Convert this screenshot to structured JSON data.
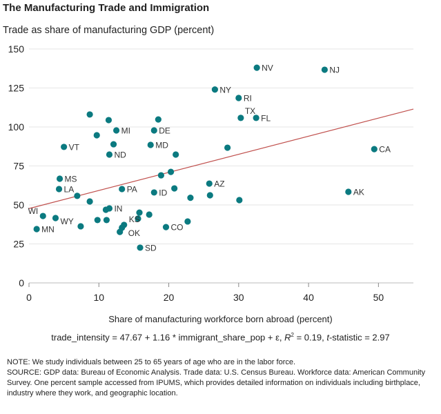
{
  "title": "The Manufacturing Trade and Immigration",
  "chart_data": {
    "type": "scatter",
    "title": "The Manufacturing Trade and Immigration",
    "ylabel": "Trade as share of manufacturing GDP (percent)",
    "xlabel": "Share of manufacturing workforce born abroad (percent)",
    "xlim": [
      0,
      55
    ],
    "ylim": [
      0,
      150
    ],
    "xticks": [
      "0",
      "10",
      "20",
      "30",
      "40",
      "50"
    ],
    "yticks": [
      "0",
      "25",
      "50",
      "75",
      "100",
      "125",
      "150"
    ],
    "grid": "horizontal",
    "colors": {
      "points": "#0b7a80",
      "fit_line": "#c0504d",
      "grid": "#e6e6e6"
    },
    "points": [
      {
        "label": "NV",
        "x": 32.6,
        "y": 138
      },
      {
        "label": "NJ",
        "x": 42.3,
        "y": 136.7
      },
      {
        "label": "NY",
        "x": 26.6,
        "y": 124
      },
      {
        "label": "RI",
        "x": 30.0,
        "y": 118.6
      },
      {
        "label": "TX",
        "x": 30.3,
        "y": 105.8
      },
      {
        "label": "FL",
        "x": 32.5,
        "y": 105.8
      },
      {
        "label": "",
        "x": 28.4,
        "y": 86.7
      },
      {
        "label": "CA",
        "x": 49.4,
        "y": 85.8
      },
      {
        "label": "AZ",
        "x": 25.8,
        "y": 63.7
      },
      {
        "label": "",
        "x": 23.1,
        "y": 54.6
      },
      {
        "label": "",
        "x": 25.9,
        "y": 56.2
      },
      {
        "label": "",
        "x": 30.1,
        "y": 53.1
      },
      {
        "label": "AK",
        "x": 45.7,
        "y": 58.4
      },
      {
        "label": "",
        "x": 22.7,
        "y": 39.4
      },
      {
        "label": "",
        "x": 8.7,
        "y": 108
      },
      {
        "label": "",
        "x": 11.4,
        "y": 104.4
      },
      {
        "label": "MI",
        "x": 12.5,
        "y": 97.8
      },
      {
        "label": "DE",
        "x": 17.9,
        "y": 97.8
      },
      {
        "label": "",
        "x": 18.5,
        "y": 104.8
      },
      {
        "label": "",
        "x": 9.7,
        "y": 94.7
      },
      {
        "label": "VT",
        "x": 5.0,
        "y": 87.2
      },
      {
        "label": "",
        "x": 12.1,
        "y": 88.9
      },
      {
        "label": "MD",
        "x": 17.4,
        "y": 88.5
      },
      {
        "label": "ND",
        "x": 11.5,
        "y": 82.3
      },
      {
        "label": "",
        "x": 21.0,
        "y": 82.3
      },
      {
        "label": "",
        "x": 20.3,
        "y": 71.2
      },
      {
        "label": "",
        "x": 18.9,
        "y": 69.0
      },
      {
        "label": "MS",
        "x": 4.4,
        "y": 66.8
      },
      {
        "label": "LA",
        "x": 4.3,
        "y": 60.2
      },
      {
        "label": "PA",
        "x": 13.3,
        "y": 60.2
      },
      {
        "label": "",
        "x": 20.8,
        "y": 60.6
      },
      {
        "label": "ID",
        "x": 17.9,
        "y": 58.0
      },
      {
        "label": "",
        "x": 6.9,
        "y": 55.8
      },
      {
        "label": "",
        "x": 8.7,
        "y": 52.2
      },
      {
        "label": "IN",
        "x": 11.5,
        "y": 47.8
      },
      {
        "label": "",
        "x": 11.0,
        "y": 46.9
      },
      {
        "label": "",
        "x": 15.8,
        "y": 45.1
      },
      {
        "label": "",
        "x": 17.2,
        "y": 43.8
      },
      {
        "label": "WI",
        "x": 2.0,
        "y": 42.9
      },
      {
        "label": "WY",
        "x": 3.8,
        "y": 41.6
      },
      {
        "label": "",
        "x": 15.6,
        "y": 41.2
      },
      {
        "label": "",
        "x": 9.8,
        "y": 40.3
      },
      {
        "label": "",
        "x": 11.1,
        "y": 40.3
      },
      {
        "label": "",
        "x": 7.4,
        "y": 36.3
      },
      {
        "label": "KS",
        "x": 13.6,
        "y": 37.2
      },
      {
        "label": "OK",
        "x": 13.3,
        "y": 35.4
      },
      {
        "label": "",
        "x": 13.0,
        "y": 32.7
      },
      {
        "label": "CO",
        "x": 19.6,
        "y": 35.8
      },
      {
        "label": "MN",
        "x": 1.1,
        "y": 34.5
      },
      {
        "label": "SD",
        "x": 15.9,
        "y": 22.6
      }
    ],
    "fit": {
      "intercept": 47.67,
      "slope": 1.16
    }
  },
  "equation": {
    "main": "trade_intensity = 47.67 + 1.16 * immigrant_share_pop + ε, ",
    "r2_label": "R",
    "r2_sup": "2",
    "r2_value": " = 0.19, ",
    "t_label": "t",
    "t_value": "-statistic = 2.97"
  },
  "notes": [
    "NOTE: We study individuals between 25 to 65 years of age who are in the labor force.",
    "SOURCE: GDP data: Bureau of Economic Analysis. Trade data: U.S. Census Bureau.  Workforce data: American Community Survey. One percent sample accessed from IPUMS, which provides detailed information on individuals including birthplace, industry where they work, and geographic location."
  ]
}
